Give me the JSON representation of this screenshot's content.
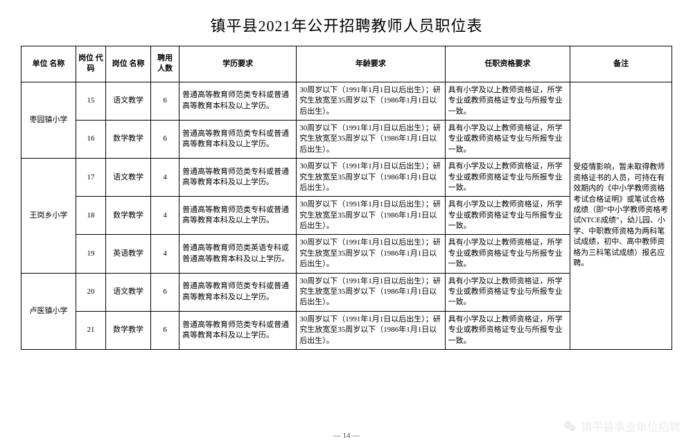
{
  "title": "镇平县2021年公开招聘教师人员职位表",
  "page_label": "— 14 —",
  "watermark": "镇平县事业单位招聘",
  "headers": {
    "unit": "单位\n名称",
    "code": "岗位\n代码",
    "pos": "岗位\n名称",
    "cnt": "聘用\n人数",
    "edu": "学历要求",
    "age": "年龄要求",
    "qual": "任职资格要求",
    "note": "备注"
  },
  "note_text": "受疫情影响，暂未取得教师资格证书的人员，可持在有效期内的《中小学教师资格考试合格证明》或笔试合格成绩（即“中小学教师资格考试NTCE成绩”，幼儿园、小学、中职教师资格为两科笔试成绩，初中、高中教师资格为三科笔试成绩）报名应聘。",
  "edu_normal": "普通高等教育师范类专科或普通高等教育本科及以上学历。",
  "edu_english": "普通高等教育师范类英语专科或普通高等教育本科及以上学历。",
  "age_text": "30周岁以下（1991年1月1日以后出生）；研究生放宽至35周岁以下（1986年1月1日以后出生）。",
  "qual_text": "具有小学及以上教师资格证，所学专业或教师资格证专业与所报专业一致。",
  "groups": [
    {
      "unit": "枣园镇小学",
      "rows": [
        {
          "code": "15",
          "pos": "语文教学",
          "cnt": "6",
          "edu_key": "edu_normal"
        },
        {
          "code": "16",
          "pos": "数学教学",
          "cnt": "6",
          "edu_key": "edu_normal"
        }
      ]
    },
    {
      "unit": "王岗乡小学",
      "rows": [
        {
          "code": "17",
          "pos": "语文教学",
          "cnt": "4",
          "edu_key": "edu_normal"
        },
        {
          "code": "18",
          "pos": "数学教学",
          "cnt": "4",
          "edu_key": "edu_normal"
        },
        {
          "code": "19",
          "pos": "英语教学",
          "cnt": "4",
          "edu_key": "edu_english"
        }
      ]
    },
    {
      "unit": "卢医镇小学",
      "rows": [
        {
          "code": "20",
          "pos": "语文教学",
          "cnt": "6",
          "edu_key": "edu_normal"
        },
        {
          "code": "21",
          "pos": "数学教学",
          "cnt": "6",
          "edu_key": "edu_normal"
        }
      ]
    }
  ]
}
